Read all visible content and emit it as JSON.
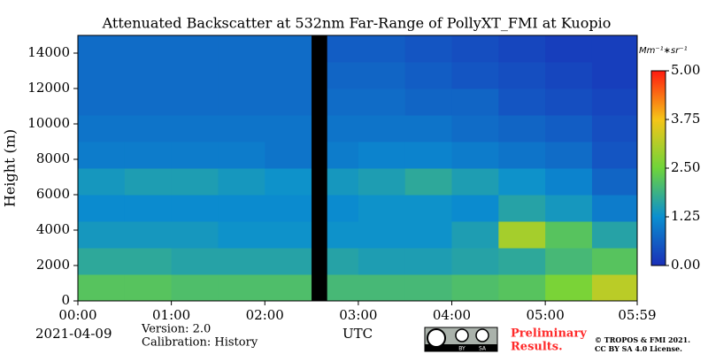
{
  "chart_data": {
    "type": "heatmap",
    "title": "Attenuated Backscatter at 532nm Far-Range of PollyXT_FMI at Kuopio",
    "ylabel": "Height (m)",
    "xlabel": "UTC",
    "date": "2021-04-09",
    "version": "Version: 2.0",
    "calibration": "Calibration: History",
    "note_lines": [
      "Preliminary",
      "Results."
    ],
    "credit_lines": [
      "© TROPOS & FMI 2021.",
      "CC BY SA 4.0 License."
    ],
    "license_badge": [
      "BY",
      "SA"
    ],
    "colorbar_label": "Mm⁻¹∗sr⁻¹",
    "xlim": [
      0,
      359
    ],
    "xticks": [
      {
        "value": 0,
        "label": "00:00"
      },
      {
        "value": 60,
        "label": "01:00"
      },
      {
        "value": 120,
        "label": "02:00"
      },
      {
        "value": 180,
        "label": "03:00"
      },
      {
        "value": 240,
        "label": "04:00"
      },
      {
        "value": 300,
        "label": "05:00"
      },
      {
        "value": 359,
        "label": "05:59"
      }
    ],
    "ylim": [
      0,
      15000
    ],
    "yticks": [
      0,
      2000,
      4000,
      6000,
      8000,
      10000,
      12000,
      14000
    ],
    "zlim": [
      0,
      5
    ],
    "zticks": [
      {
        "value": 0,
        "label": "0.00"
      },
      {
        "value": 1.25,
        "label": "1.25"
      },
      {
        "value": 2.5,
        "label": "2.50"
      },
      {
        "value": 3.75,
        "label": "3.75"
      },
      {
        "value": 5,
        "label": "5.00"
      }
    ],
    "colormap": [
      "#1a2fb8",
      "#0a8fd0",
      "#6fd43a",
      "#f5c518",
      "#ff1a0f"
    ],
    "missing_color": "#000000",
    "x_edges": [
      0,
      30,
      60,
      90,
      120,
      150,
      160,
      180,
      210,
      240,
      270,
      300,
      330,
      359
    ],
    "y_edges": [
      0,
      1500,
      3000,
      4500,
      6000,
      7500,
      9000,
      10500,
      12000,
      13500,
      15000
    ],
    "z": [
      [
        2.2,
        2.2,
        2.1,
        2.1,
        2.1,
        null,
        2.0,
        2.0,
        2.0,
        2.1,
        2.2,
        2.6,
        3.2
      ],
      [
        1.7,
        1.7,
        1.6,
        1.6,
        1.6,
        null,
        1.6,
        1.5,
        1.5,
        1.6,
        1.7,
        2.0,
        2.2
      ],
      [
        1.4,
        1.4,
        1.4,
        1.3,
        1.3,
        null,
        1.3,
        1.3,
        1.3,
        1.5,
        3.0,
        2.2,
        1.6
      ],
      [
        1.2,
        1.2,
        1.2,
        1.2,
        1.2,
        null,
        1.2,
        1.3,
        1.3,
        1.2,
        1.6,
        1.4,
        1.0
      ],
      [
        1.4,
        1.5,
        1.5,
        1.4,
        1.3,
        null,
        1.4,
        1.5,
        1.7,
        1.5,
        1.3,
        1.1,
        0.7
      ],
      [
        1.0,
        1.0,
        1.0,
        1.0,
        0.9,
        null,
        1.0,
        1.1,
        1.1,
        1.0,
        0.9,
        0.8,
        0.5
      ],
      [
        0.9,
        0.9,
        0.9,
        0.9,
        0.9,
        null,
        0.9,
        0.9,
        0.9,
        0.8,
        0.7,
        0.6,
        0.4
      ],
      [
        0.8,
        0.8,
        0.8,
        0.8,
        0.8,
        null,
        0.8,
        0.8,
        0.7,
        0.7,
        0.5,
        0.4,
        0.3
      ],
      [
        0.8,
        0.8,
        0.8,
        0.8,
        0.8,
        null,
        0.7,
        0.7,
        0.6,
        0.5,
        0.4,
        0.3,
        0.2
      ],
      [
        0.8,
        0.8,
        0.8,
        0.8,
        0.8,
        null,
        0.6,
        0.6,
        0.5,
        0.4,
        0.3,
        0.2,
        0.2
      ]
    ]
  }
}
